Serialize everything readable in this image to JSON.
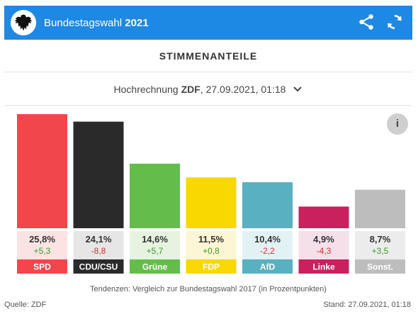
{
  "header": {
    "title_plain": "Bundestagswahl",
    "title_bold": "2021"
  },
  "section_title": "STIMMENANTEILE",
  "selector": {
    "prefix": "Hochrechnung",
    "source": "ZDF",
    "datetime": ", 27.09.2021, 01:18"
  },
  "info_label": "i",
  "note": "Tendenzen: Vergleich zur Bundestagswahl 2017 (in Prozentpunkten)",
  "footer": {
    "source": "Quelle: ZDF",
    "stand": "Stand: 27.09.2021, 01:18"
  },
  "chart_data": {
    "type": "bar",
    "categories": [
      "SPD",
      "CDU/CSU",
      "Grüne",
      "FDP",
      "AfD",
      "Linke",
      "Sonst."
    ],
    "values": [
      25.8,
      24.1,
      14.6,
      11.5,
      10.4,
      4.9,
      8.7
    ],
    "value_labels": [
      "25,8%",
      "24,1%",
      "14,6%",
      "11,5%",
      "10,4%",
      "4,9%",
      "8,7%"
    ],
    "change_labels": [
      "+5,3",
      "-8,8",
      "+5,7",
      "+0,8",
      "-2,2",
      "-4,3",
      "+3,5"
    ],
    "changes": [
      5.3,
      -8.8,
      5.7,
      0.8,
      -2.2,
      -4.3,
      3.5
    ],
    "colors": [
      "#f2464d",
      "#2a2a2a",
      "#64bd4b",
      "#f8d800",
      "#58b0c1",
      "#c8215e",
      "#bdbdbd"
    ],
    "box_colors": [
      "#fbe3e3",
      "#e6e6e6",
      "#e7f3e1",
      "#fdf6d4",
      "#e2f1f4",
      "#f5dfe8",
      "#ececec"
    ],
    "label_text_colors": [
      "#ffffff",
      "#ffffff",
      "#ffffff",
      "#ffffff",
      "#ffffff",
      "#ffffff",
      "#ffffff"
    ],
    "positive_color": "#3a9a2a",
    "negative_color": "#d0342c"
  }
}
